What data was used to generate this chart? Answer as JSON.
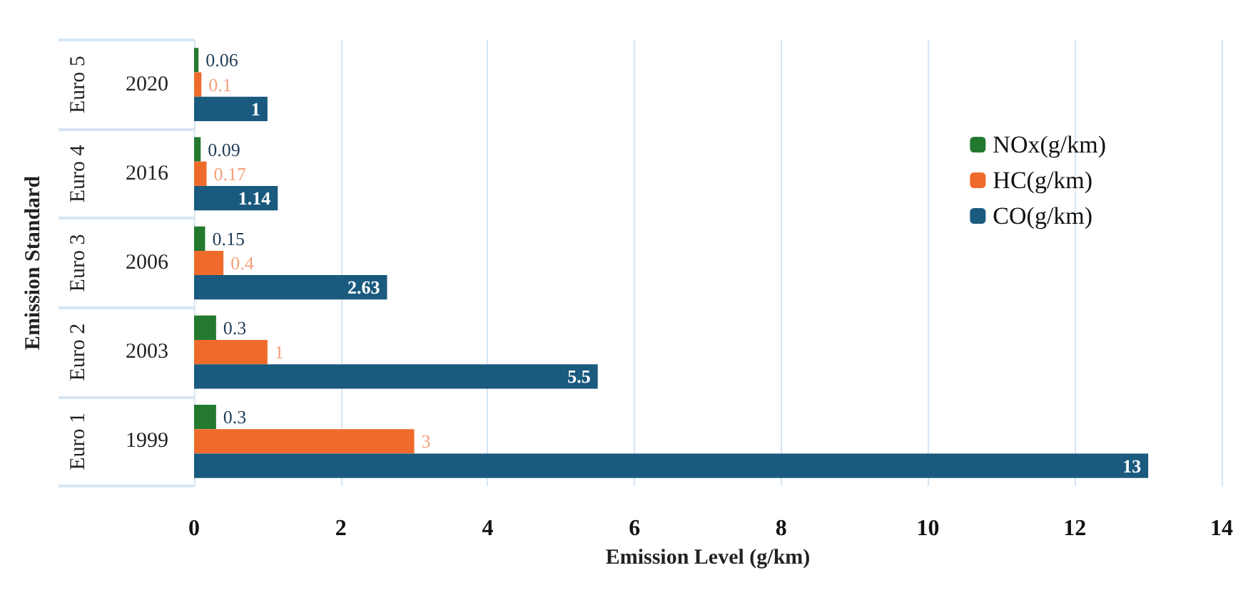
{
  "chart_data": {
    "type": "bar",
    "orientation": "horizontal",
    "xlabel": "Emission Level (g/km)",
    "ylabel": "Emission Standard",
    "categories": [
      "2020",
      "2016",
      "2006",
      "2003",
      "1999"
    ],
    "annotations": [
      "Euro 5",
      "Euro 4",
      "Euro 3",
      "Euro 2",
      "Euro 1"
    ],
    "series": [
      {
        "name": "NOx(g/km)",
        "color": "#237a2f",
        "values": [
          0.06,
          0.09,
          0.15,
          0.3,
          0.3
        ]
      },
      {
        "name": "HC(g/km)",
        "color": "#ef6b2c",
        "values": [
          0.1,
          0.17,
          0.4,
          1,
          3
        ]
      },
      {
        "name": "CO(g/km)",
        "color": "#1a5a7e",
        "values": [
          1,
          1.14,
          2.63,
          5.5,
          13
        ]
      }
    ],
    "xlim": [
      0,
      14
    ],
    "xticks": [
      0,
      2,
      4,
      6,
      8,
      10,
      12,
      14
    ],
    "grid": "x",
    "legend": "right",
    "data_labels": true
  }
}
